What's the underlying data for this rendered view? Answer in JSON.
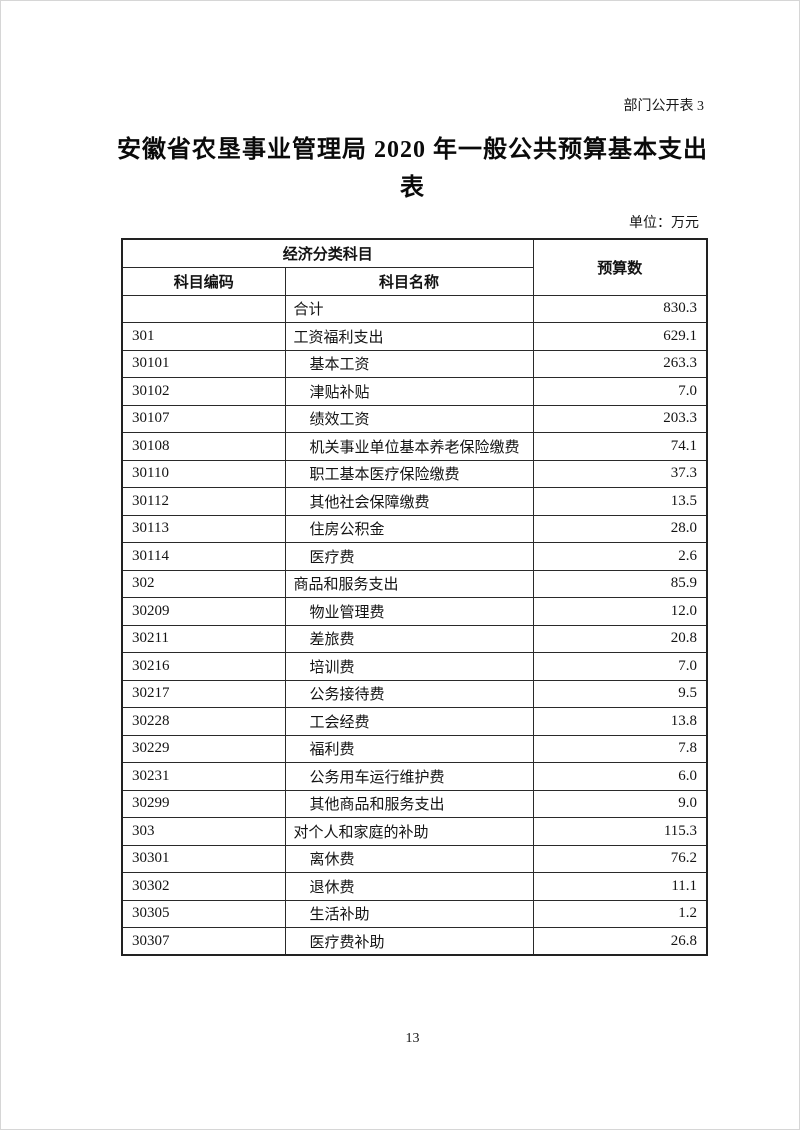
{
  "page": {
    "corner_label": "部门公开表 3",
    "title_line1": "安徽省农垦事业管理局 2020 年一般公共预算基本支出",
    "title_line2": "表",
    "unit_label": "单位：万元",
    "page_number": "13"
  },
  "table": {
    "header": {
      "group": "经济分类科目",
      "code": "科目编码",
      "name": "科目名称",
      "budget": "预算数"
    },
    "rows": [
      {
        "code": "",
        "name": "合计",
        "value": "830.3",
        "level": 0
      },
      {
        "code": "301",
        "name": "工资福利支出",
        "value": "629.1",
        "level": 0
      },
      {
        "code": "30101",
        "name": "基本工资",
        "value": "263.3",
        "level": 1
      },
      {
        "code": "30102",
        "name": "津贴补贴",
        "value": "7.0",
        "level": 1
      },
      {
        "code": "30107",
        "name": "绩效工资",
        "value": "203.3",
        "level": 1
      },
      {
        "code": "30108",
        "name": "机关事业单位基本养老保险缴费",
        "value": "74.1",
        "level": 1
      },
      {
        "code": "30110",
        "name": "职工基本医疗保险缴费",
        "value": "37.3",
        "level": 1
      },
      {
        "code": "30112",
        "name": "其他社会保障缴费",
        "value": "13.5",
        "level": 1
      },
      {
        "code": "30113",
        "name": "住房公积金",
        "value": "28.0",
        "level": 1
      },
      {
        "code": "30114",
        "name": "医疗费",
        "value": "2.6",
        "level": 1
      },
      {
        "code": "302",
        "name": "商品和服务支出",
        "value": "85.9",
        "level": 0
      },
      {
        "code": "30209",
        "name": "物业管理费",
        "value": "12.0",
        "level": 1
      },
      {
        "code": "30211",
        "name": "差旅费",
        "value": "20.8",
        "level": 1
      },
      {
        "code": "30216",
        "name": "培训费",
        "value": "7.0",
        "level": 1
      },
      {
        "code": "30217",
        "name": "公务接待费",
        "value": "9.5",
        "level": 1
      },
      {
        "code": "30228",
        "name": "工会经费",
        "value": "13.8",
        "level": 1
      },
      {
        "code": "30229",
        "name": "福利费",
        "value": "7.8",
        "level": 1
      },
      {
        "code": "30231",
        "name": "公务用车运行维护费",
        "value": "6.0",
        "level": 1
      },
      {
        "code": "30299",
        "name": "其他商品和服务支出",
        "value": "9.0",
        "level": 1
      },
      {
        "code": "303",
        "name": "对个人和家庭的补助",
        "value": "115.3",
        "level": 0
      },
      {
        "code": "30301",
        "name": "离休费",
        "value": "76.2",
        "level": 1
      },
      {
        "code": "30302",
        "name": "退休费",
        "value": "11.1",
        "level": 1
      },
      {
        "code": "30305",
        "name": "生活补助",
        "value": "1.2",
        "level": 1
      },
      {
        "code": "30307",
        "name": "医疗费补助",
        "value": "26.8",
        "level": 1
      }
    ]
  }
}
